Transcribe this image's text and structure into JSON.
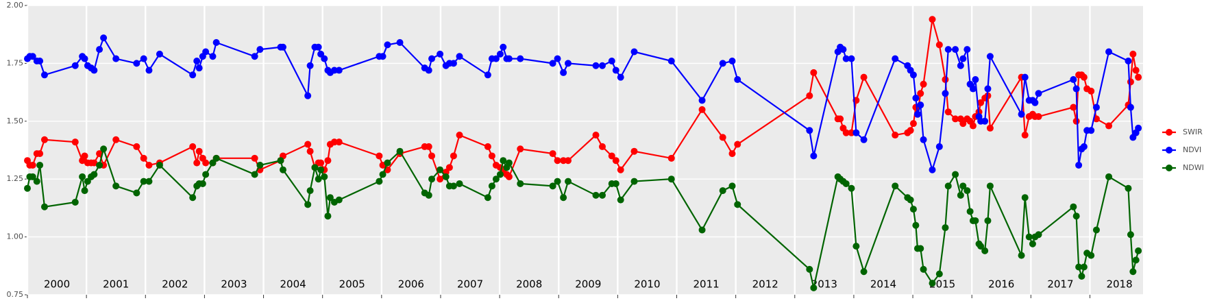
{
  "chart_data": {
    "type": "line",
    "x": [
      2000.0,
      2000.04,
      2000.09,
      2000.16,
      2000.21,
      2000.29,
      2000.81,
      2000.93,
      2000.97,
      2001.02,
      2001.08,
      2001.13,
      2001.22,
      2001.29,
      2001.5,
      2001.85,
      2001.97,
      2002.06,
      2002.24,
      2002.8,
      2002.87,
      2002.91,
      2002.97,
      2003.02,
      2003.14,
      2003.2,
      2003.85,
      2003.94,
      2004.29,
      2004.33,
      2004.75,
      2004.79,
      2004.87,
      2004.93,
      2004.97,
      2005.03,
      2005.09,
      2005.13,
      2005.2,
      2005.28,
      2005.96,
      2006.02,
      2006.1,
      2006.31,
      2006.73,
      2006.8,
      2006.85,
      2006.99,
      2007.09,
      2007.15,
      2007.22,
      2007.32,
      2007.8,
      2007.87,
      2007.94,
      2008.01,
      2008.06,
      2008.12,
      2008.16,
      2008.35,
      2008.9,
      2008.98,
      2009.08,
      2009.16,
      2009.63,
      2009.74,
      2009.9,
      2009.97,
      2010.05,
      2010.28,
      2010.91,
      2011.43,
      2011.78,
      2011.94,
      2012.03,
      2013.25,
      2013.32,
      2013.73,
      2013.77,
      2013.82,
      2013.87,
      2013.96,
      2014.04,
      2014.17,
      2014.7,
      2014.91,
      2014.96,
      2015.01,
      2015.05,
      2015.08,
      2015.13,
      2015.18,
      2015.33,
      2015.45,
      2015.55,
      2015.6,
      2015.72,
      2015.81,
      2015.85,
      2015.92,
      2015.97,
      2016.02,
      2016.06,
      2016.12,
      2016.15,
      2016.22,
      2016.27,
      2016.31,
      2016.84,
      2016.9,
      2016.97,
      2017.03,
      2017.07,
      2017.13,
      2017.72,
      2017.77,
      2017.81,
      2017.86,
      2017.9,
      2017.95,
      2018.02,
      2018.11,
      2018.32,
      2018.65,
      2018.69,
      2018.73,
      2018.78,
      2018.82
    ],
    "series": [
      {
        "name": "SWIR",
        "color": "#ff0000",
        "values": [
          1.33,
          1.31,
          1.31,
          1.36,
          1.36,
          1.42,
          1.41,
          1.33,
          1.35,
          1.32,
          1.32,
          1.32,
          1.36,
          1.31,
          1.42,
          1.39,
          1.34,
          1.31,
          1.32,
          1.39,
          1.32,
          1.37,
          1.34,
          1.32,
          1.32,
          1.34,
          1.34,
          1.29,
          1.33,
          1.35,
          1.4,
          1.37,
          1.3,
          1.32,
          1.32,
          1.29,
          1.33,
          1.4,
          1.41,
          1.41,
          1.35,
          1.31,
          1.29,
          1.36,
          1.39,
          1.39,
          1.35,
          1.25,
          1.28,
          1.3,
          1.35,
          1.44,
          1.39,
          1.35,
          1.31,
          1.3,
          1.28,
          1.27,
          1.26,
          1.38,
          1.36,
          1.33,
          1.33,
          1.33,
          1.44,
          1.39,
          1.35,
          1.33,
          1.29,
          1.37,
          1.34,
          1.55,
          1.43,
          1.36,
          1.4,
          1.61,
          1.71,
          1.51,
          1.51,
          1.47,
          1.45,
          1.45,
          1.59,
          1.69,
          1.44,
          1.45,
          1.46,
          1.49,
          1.56,
          1.53,
          1.62,
          1.66,
          1.94,
          1.83,
          1.68,
          1.54,
          1.51,
          1.51,
          1.49,
          1.51,
          1.5,
          1.48,
          1.52,
          1.54,
          1.58,
          1.6,
          1.61,
          1.47,
          1.69,
          1.44,
          1.52,
          1.53,
          1.52,
          1.52,
          1.56,
          1.5,
          1.7,
          1.7,
          1.69,
          1.64,
          1.63,
          1.51,
          1.48,
          1.57,
          1.67,
          1.79,
          1.72,
          1.69
        ]
      },
      {
        "name": "NDVI",
        "color": "#0000ff",
        "values": [
          1.77,
          1.78,
          1.78,
          1.76,
          1.76,
          1.7,
          1.74,
          1.78,
          1.77,
          1.74,
          1.73,
          1.72,
          1.81,
          1.86,
          1.77,
          1.75,
          1.77,
          1.72,
          1.79,
          1.7,
          1.76,
          1.73,
          1.78,
          1.8,
          1.78,
          1.84,
          1.78,
          1.81,
          1.82,
          1.82,
          1.61,
          1.74,
          1.82,
          1.82,
          1.79,
          1.77,
          1.72,
          1.71,
          1.72,
          1.72,
          1.78,
          1.78,
          1.83,
          1.84,
          1.73,
          1.72,
          1.77,
          1.79,
          1.74,
          1.75,
          1.75,
          1.78,
          1.7,
          1.77,
          1.77,
          1.79,
          1.82,
          1.77,
          1.77,
          1.77,
          1.75,
          1.77,
          1.71,
          1.75,
          1.74,
          1.74,
          1.76,
          1.72,
          1.69,
          1.8,
          1.76,
          1.59,
          1.75,
          1.76,
          1.68,
          1.46,
          1.35,
          1.8,
          1.82,
          1.81,
          1.77,
          1.77,
          1.45,
          1.42,
          1.77,
          1.74,
          1.72,
          1.7,
          1.6,
          1.53,
          1.57,
          1.42,
          1.29,
          1.39,
          1.62,
          1.81,
          1.81,
          1.74,
          1.77,
          1.81,
          1.66,
          1.64,
          1.68,
          1.52,
          1.5,
          1.5,
          1.64,
          1.78,
          1.53,
          1.69,
          1.59,
          1.59,
          1.58,
          1.62,
          1.68,
          1.64,
          1.31,
          1.38,
          1.39,
          1.46,
          1.46,
          1.56,
          1.8,
          1.76,
          1.56,
          1.43,
          1.45,
          1.47
        ]
      },
      {
        "name": "NDWI",
        "color": "#006400",
        "values": [
          1.21,
          1.26,
          1.26,
          1.24,
          1.31,
          1.13,
          1.15,
          1.26,
          1.2,
          1.24,
          1.26,
          1.27,
          1.31,
          1.38,
          1.22,
          1.19,
          1.24,
          1.24,
          1.31,
          1.17,
          1.22,
          1.23,
          1.23,
          1.27,
          1.32,
          1.34,
          1.27,
          1.31,
          1.33,
          1.29,
          1.14,
          1.2,
          1.3,
          1.25,
          1.29,
          1.26,
          1.09,
          1.17,
          1.15,
          1.16,
          1.24,
          1.27,
          1.32,
          1.37,
          1.19,
          1.18,
          1.25,
          1.29,
          1.26,
          1.22,
          1.22,
          1.23,
          1.17,
          1.22,
          1.25,
          1.27,
          1.33,
          1.3,
          1.32,
          1.23,
          1.22,
          1.24,
          1.17,
          1.24,
          1.18,
          1.18,
          1.23,
          1.23,
          1.16,
          1.24,
          1.25,
          1.03,
          1.2,
          1.22,
          1.14,
          0.86,
          0.78,
          1.26,
          1.25,
          1.24,
          1.23,
          1.21,
          0.96,
          0.85,
          1.22,
          1.17,
          1.16,
          1.12,
          1.05,
          0.95,
          0.95,
          0.86,
          0.8,
          0.84,
          1.04,
          1.22,
          1.27,
          1.18,
          1.22,
          1.2,
          1.11,
          1.07,
          1.07,
          0.97,
          0.96,
          0.94,
          1.07,
          1.22,
          0.92,
          1.17,
          1.0,
          0.97,
          1.0,
          1.01,
          1.13,
          1.09,
          0.87,
          0.83,
          0.87,
          0.93,
          0.92,
          1.03,
          1.26,
          1.21,
          1.01,
          0.85,
          0.9,
          0.94
        ]
      }
    ],
    "xlim": [
      2000,
      2018.9
    ],
    "xticks": [
      2000,
      2001,
      2002,
      2003,
      2004,
      2005,
      2006,
      2007,
      2008,
      2009,
      2010,
      2011,
      2012,
      2013,
      2014,
      2015,
      2016,
      2017,
      2018
    ],
    "ylim": [
      0.75,
      2.0
    ],
    "yticks": [
      {
        "value": 0.75,
        "label": "0.75"
      },
      {
        "value": 1.0,
        "label": "1.00"
      },
      {
        "value": 1.25,
        "label": "1.25"
      },
      {
        "value": 1.5,
        "label": "1.50"
      },
      {
        "value": 1.75,
        "label": "1.75"
      },
      {
        "value": 2.0,
        "label": "2.00"
      }
    ],
    "grid": true,
    "legend": "right"
  }
}
